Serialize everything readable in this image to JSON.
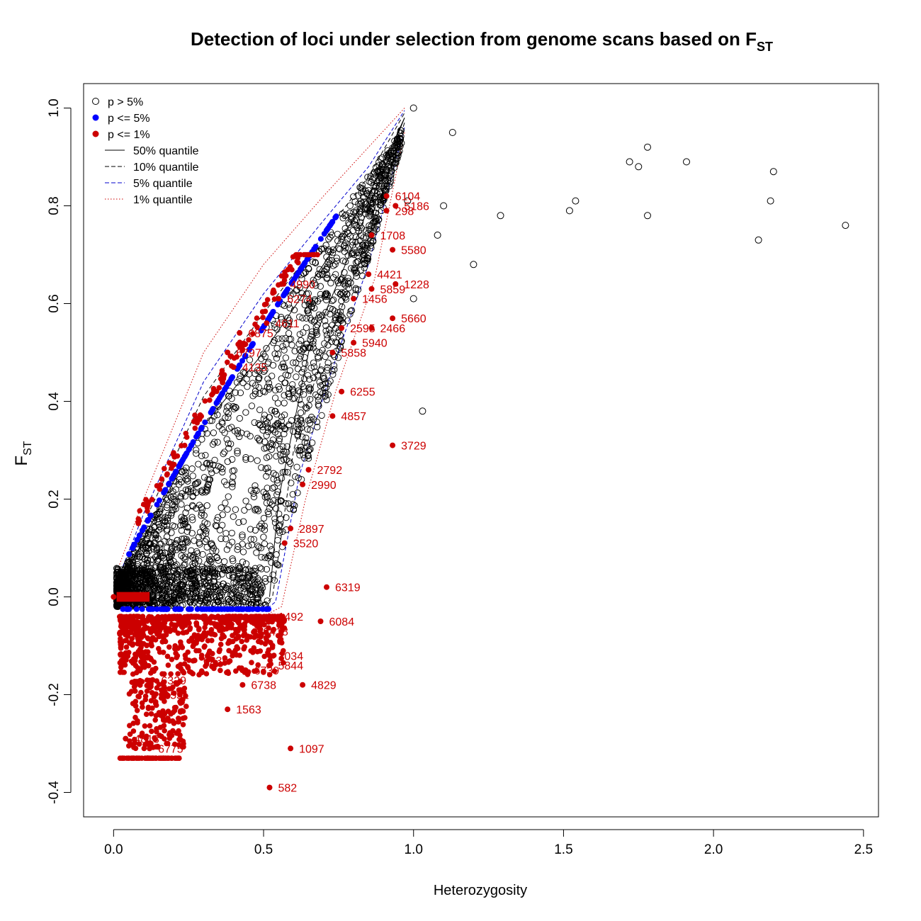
{
  "chart_data": {
    "type": "scatter",
    "title": "Detection of loci under selection from genome scans based on F",
    "title_subscript": "ST",
    "xlabel": "Heterozygosity",
    "ylabel": "F",
    "ylabel_subscript": "ST",
    "xlim": [
      -0.1,
      2.55
    ],
    "ylim": [
      -0.45,
      1.05
    ],
    "xticks": [
      0.0,
      0.5,
      1.0,
      1.5,
      2.0,
      2.5
    ],
    "xtick_labels": [
      "0.0",
      "0.5",
      "1.0",
      "1.5",
      "2.0",
      "2.5"
    ],
    "yticks": [
      -0.4,
      -0.2,
      0.0,
      0.2,
      0.4,
      0.6,
      0.8,
      1.0
    ],
    "ytick_labels": [
      "-0.4",
      "-0.2",
      "0.0",
      "0.2",
      "0.4",
      "0.6",
      "0.8",
      "1.0"
    ],
    "grid": false,
    "legend": {
      "placement": "top-left",
      "entries": [
        {
          "label": "p > 5%",
          "kind": "open-circle",
          "color": "#000000"
        },
        {
          "label": "p <= 5%",
          "kind": "filled-circle",
          "color": "#0000ff"
        },
        {
          "label": "p <= 1%",
          "kind": "filled-circle",
          "color": "#cc0000"
        },
        {
          "label": "50% quantile",
          "kind": "solid-line",
          "color": "#000000"
        },
        {
          "label": "10% quantile",
          "kind": "dashed-line",
          "color": "#000000"
        },
        {
          "label": "5% quantile",
          "kind": "dashed-line",
          "color": "#0000cc"
        },
        {
          "label": "1% quantile",
          "kind": "dotted-line",
          "color": "#cc0000"
        }
      ]
    },
    "colors": {
      "neutral": "#000000",
      "p05": "#0000ff",
      "p01": "#cc0000"
    },
    "quantile_lines": {
      "q50_upper": [
        [
          0.01,
          0.0
        ],
        [
          0.1,
          0.12
        ],
        [
          0.3,
          0.35
        ],
        [
          0.5,
          0.5
        ],
        [
          0.7,
          0.68
        ],
        [
          0.85,
          0.82
        ],
        [
          0.97,
          0.98
        ]
      ],
      "q50_lower": [
        [
          0.97,
          0.98
        ],
        [
          0.8,
          0.72
        ],
        [
          0.65,
          0.5
        ],
        [
          0.55,
          0.2
        ],
        [
          0.52,
          0.0
        ]
      ],
      "q10_upper": [
        [
          0.01,
          0.02
        ],
        [
          0.1,
          0.15
        ],
        [
          0.3,
          0.41
        ],
        [
          0.5,
          0.58
        ],
        [
          0.7,
          0.74
        ],
        [
          0.85,
          0.86
        ],
        [
          0.97,
          0.99
        ]
      ],
      "q10_lower": [
        [
          0.97,
          0.97
        ],
        [
          0.83,
          0.7
        ],
        [
          0.7,
          0.5
        ],
        [
          0.6,
          0.3
        ],
        [
          0.53,
          0.0
        ],
        [
          0.5,
          -0.02
        ]
      ],
      "q05_upper": [
        [
          0.01,
          0.03
        ],
        [
          0.1,
          0.17
        ],
        [
          0.3,
          0.44
        ],
        [
          0.5,
          0.62
        ],
        [
          0.7,
          0.77
        ],
        [
          0.85,
          0.88
        ],
        [
          0.97,
          0.995
        ]
      ],
      "q05_lower": [
        [
          0.97,
          0.96
        ],
        [
          0.85,
          0.68
        ],
        [
          0.72,
          0.45
        ],
        [
          0.62,
          0.25
        ],
        [
          0.54,
          -0.01
        ],
        [
          0.5,
          -0.03
        ]
      ],
      "q01_upper": [
        [
          0.01,
          0.05
        ],
        [
          0.1,
          0.2
        ],
        [
          0.3,
          0.5
        ],
        [
          0.5,
          0.68
        ],
        [
          0.7,
          0.82
        ],
        [
          0.85,
          0.92
        ],
        [
          0.97,
          1.0
        ]
      ],
      "q01_lower": [
        [
          0.97,
          0.95
        ],
        [
          0.87,
          0.65
        ],
        [
          0.74,
          0.42
        ],
        [
          0.64,
          0.2
        ],
        [
          0.56,
          -0.02
        ],
        [
          0.5,
          -0.04
        ]
      ]
    },
    "outliers_black": [
      {
        "x": 1.0,
        "y": 1.0
      },
      {
        "x": 1.13,
        "y": 0.95
      },
      {
        "x": 1.72,
        "y": 0.89
      },
      {
        "x": 1.75,
        "y": 0.88
      },
      {
        "x": 1.78,
        "y": 0.92
      },
      {
        "x": 1.91,
        "y": 0.89
      },
      {
        "x": 2.2,
        "y": 0.87
      },
      {
        "x": 2.19,
        "y": 0.81
      },
      {
        "x": 1.54,
        "y": 0.81
      },
      {
        "x": 1.52,
        "y": 0.79
      },
      {
        "x": 1.78,
        "y": 0.78
      },
      {
        "x": 1.29,
        "y": 0.78
      },
      {
        "x": 1.1,
        "y": 0.8
      },
      {
        "x": 1.08,
        "y": 0.74
      },
      {
        "x": 1.2,
        "y": 0.68
      },
      {
        "x": 2.15,
        "y": 0.73
      },
      {
        "x": 2.44,
        "y": 0.76
      },
      {
        "x": 1.03,
        "y": 0.38
      },
      {
        "x": 1.0,
        "y": 0.61
      },
      {
        "x": 0.98,
        "y": 0.81
      }
    ],
    "labeled_loci": [
      {
        "id": "6104",
        "x": 0.91,
        "y": 0.82
      },
      {
        "id": "5186",
        "x": 0.94,
        "y": 0.8
      },
      {
        "id": "298",
        "x": 0.91,
        "y": 0.79
      },
      {
        "id": "1708",
        "x": 0.86,
        "y": 0.74
      },
      {
        "id": "5580",
        "x": 0.93,
        "y": 0.71
      },
      {
        "id": "4421",
        "x": 0.85,
        "y": 0.66
      },
      {
        "id": "1228",
        "x": 0.94,
        "y": 0.64
      },
      {
        "id": "5859",
        "x": 0.86,
        "y": 0.63
      },
      {
        "id": "1456",
        "x": 0.8,
        "y": 0.61
      },
      {
        "id": "5660",
        "x": 0.93,
        "y": 0.57
      },
      {
        "id": "2595",
        "x": 0.76,
        "y": 0.55
      },
      {
        "id": "2466",
        "x": 0.86,
        "y": 0.55
      },
      {
        "id": "5940",
        "x": 0.8,
        "y": 0.52
      },
      {
        "id": "5858",
        "x": 0.73,
        "y": 0.5
      },
      {
        "id": "6255",
        "x": 0.76,
        "y": 0.42
      },
      {
        "id": "4857",
        "x": 0.73,
        "y": 0.37
      },
      {
        "id": "3729",
        "x": 0.93,
        "y": 0.31
      },
      {
        "id": "2792",
        "x": 0.65,
        "y": 0.26
      },
      {
        "id": "2990",
        "x": 0.63,
        "y": 0.23
      },
      {
        "id": "2897",
        "x": 0.59,
        "y": 0.14
      },
      {
        "id": "3520",
        "x": 0.57,
        "y": 0.11
      },
      {
        "id": "6319",
        "x": 0.71,
        "y": 0.02
      },
      {
        "id": "1492",
        "x": 0.52,
        "y": -0.04
      },
      {
        "id": "6084",
        "x": 0.69,
        "y": -0.05
      },
      {
        "id": "6418",
        "x": 0.47,
        "y": -0.07
      },
      {
        "id": "2034",
        "x": 0.52,
        "y": -0.12
      },
      {
        "id": "5844",
        "x": 0.52,
        "y": -0.14
      },
      {
        "id": "6239",
        "x": 0.27,
        "y": -0.13
      },
      {
        "id": "6739",
        "x": 0.44,
        "y": -0.15
      },
      {
        "id": "6738",
        "x": 0.43,
        "y": -0.18
      },
      {
        "id": "4829",
        "x": 0.63,
        "y": -0.18
      },
      {
        "id": "1563",
        "x": 0.38,
        "y": -0.23
      },
      {
        "id": "6329",
        "x": 0.13,
        "y": -0.17
      },
      {
        "id": "551",
        "x": 0.16,
        "y": -0.2
      },
      {
        "id": "1097",
        "x": 0.59,
        "y": -0.31
      },
      {
        "id": "4813",
        "x": 0.04,
        "y": -0.29
      },
      {
        "id": "582",
        "x": 0.52,
        "y": -0.39
      },
      {
        "id": "6775",
        "x": 0.12,
        "y": -0.31
      },
      {
        "id": "6875",
        "x": 0.42,
        "y": 0.54
      },
      {
        "id": "4611",
        "x": 0.51,
        "y": 0.56
      },
      {
        "id": "6274",
        "x": 0.55,
        "y": 0.61
      },
      {
        "id": "6797",
        "x": 0.38,
        "y": 0.5
      },
      {
        "id": "4135",
        "x": 0.4,
        "y": 0.47
      },
      {
        "id": "4990",
        "x": 0.56,
        "y": 0.64
      }
    ]
  }
}
